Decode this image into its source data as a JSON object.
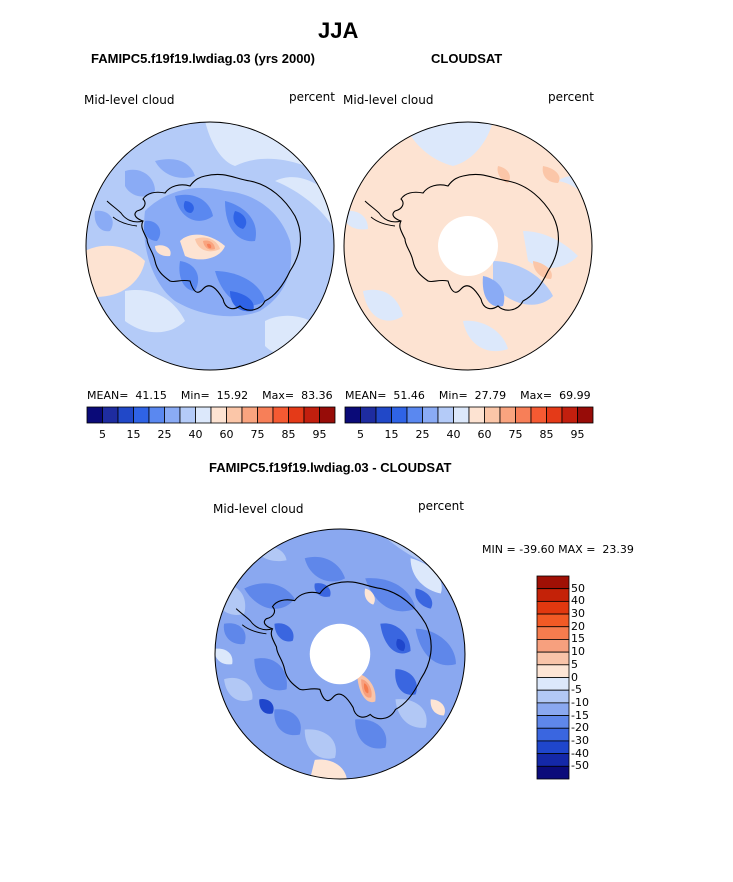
{
  "page": {
    "title": "JJA"
  },
  "panels": [
    {
      "id": "model",
      "case_title": "FAMIPC5.f19f19.lwdiag.03 (yrs 2000)",
      "variable": "Mid-level cloud",
      "units": "percent",
      "stats": {
        "mean_label": "MEAN=",
        "mean": "41.15",
        "min_label": "Min=",
        "min": "15.92",
        "max_label": "Max=",
        "max": "83.36"
      }
    },
    {
      "id": "obs",
      "case_title": "CLOUDSAT",
      "variable": "Mid-level cloud",
      "units": "percent",
      "stats": {
        "mean_label": "MEAN=",
        "mean": "51.46",
        "min_label": "Min=",
        "min": "27.79",
        "max_label": "Max=",
        "max": "69.99"
      }
    },
    {
      "id": "diff",
      "case_title": "FAMIPC5.f19f19.lwdiag.03 - CLOUDSAT",
      "variable": "Mid-level cloud",
      "units": "percent",
      "stats": {
        "min_label": "MIN =",
        "min": "-39.60",
        "max_label": "MAX =",
        "max": "23.39"
      }
    }
  ],
  "chart_data": [
    {
      "type": "heatmap",
      "projection": "south polar stereographic",
      "title": "FAMIPC5.f19f19.lwdiag.03 (yrs 2000)",
      "variable": "Mid-level cloud",
      "units": "percent",
      "colorbar": {
        "orientation": "horizontal",
        "tick_labels": [
          "5",
          "15",
          "25",
          "40",
          "60",
          "75",
          "85",
          "95"
        ],
        "colors": [
          "#0a0a78",
          "#1e2ca0",
          "#2148c8",
          "#2f63e6",
          "#5a88f0",
          "#8aabf5",
          "#b4cbf8",
          "#dce8fb",
          "#fde3d2",
          "#fbc6a8",
          "#f9a47f",
          "#f77f58",
          "#f55a32",
          "#e43a18",
          "#c21f0e",
          "#970c08"
        ]
      },
      "mean": 41.15,
      "min": 15.92,
      "max": 83.36
    },
    {
      "type": "heatmap",
      "projection": "south polar stereographic",
      "title": "CLOUDSAT",
      "variable": "Mid-level cloud",
      "units": "percent",
      "colorbar": {
        "orientation": "horizontal",
        "tick_labels": [
          "5",
          "15",
          "25",
          "40",
          "60",
          "75",
          "85",
          "95"
        ],
        "colors": [
          "#0a0a78",
          "#1e2ca0",
          "#2148c8",
          "#2f63e6",
          "#5a88f0",
          "#8aabf5",
          "#b4cbf8",
          "#dce8fb",
          "#fde3d2",
          "#fbc6a8",
          "#f9a47f",
          "#f77f58",
          "#f55a32",
          "#e43a18",
          "#c21f0e",
          "#970c08"
        ]
      },
      "mean": 51.46,
      "min": 27.79,
      "max": 69.99
    },
    {
      "type": "heatmap",
      "projection": "south polar stereographic",
      "title": "FAMIPC5.f19f19.lwdiag.03 - CLOUDSAT",
      "variable": "Mid-level cloud",
      "units": "percent",
      "colorbar": {
        "orientation": "vertical",
        "tick_labels": [
          "50",
          "40",
          "30",
          "20",
          "15",
          "10",
          "5",
          "0",
          "-5",
          "-10",
          "-15",
          "-20",
          "-30",
          "-40",
          "-50"
        ],
        "colors": [
          "#a01005",
          "#c42208",
          "#e2380f",
          "#f25a25",
          "#f57c4e",
          "#f7a07e",
          "#f9c4a9",
          "#fde5d5",
          "#dce8fb",
          "#b2c8f5",
          "#8aa8f0",
          "#5f87ea",
          "#3a66e0",
          "#1f46cc",
          "#1428a8",
          "#0b0b7a"
        ]
      },
      "min": -39.6,
      "max": 23.39
    }
  ]
}
